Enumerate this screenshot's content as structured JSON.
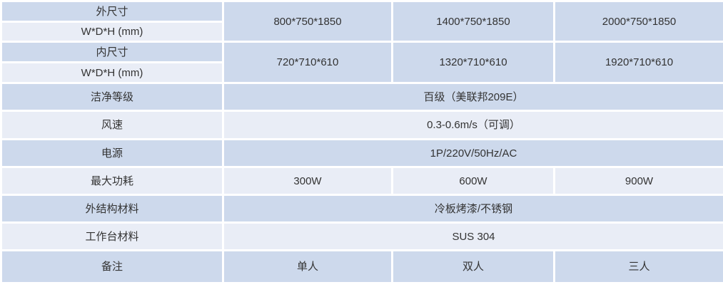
{
  "colors": {
    "row_dark": "#cdd9ec",
    "row_light": "#e9edf6",
    "divider": "#ffffff",
    "text": "#333333"
  },
  "spec_table": {
    "dim_outer": {
      "label_line1": "外尺寸",
      "label_line2": "W*D*H (mm)",
      "values": [
        "800*750*1850",
        "1400*750*1850",
        "2000*750*1850"
      ]
    },
    "dim_inner": {
      "label_line1": "内尺寸",
      "label_line2": "W*D*H (mm)",
      "values": [
        "720*710*610",
        "1320*710*610",
        "1920*710*610"
      ]
    },
    "clean_class": {
      "label": "洁净等级",
      "value": "百级（美联邦209E）"
    },
    "air_speed": {
      "label": "风速",
      "value": "0.3-0.6m/s（可调）"
    },
    "power_supply": {
      "label": "电源",
      "value": "1P/220V/50Hz/AC"
    },
    "max_power": {
      "label": "最大功耗",
      "values": [
        "300W",
        "600W",
        "900W"
      ]
    },
    "outer_material": {
      "label": "外结构材料",
      "value": "冷板烤漆/不锈钢"
    },
    "worktop_material": {
      "label": "工作台材料",
      "value": "SUS 304"
    },
    "remark": {
      "label": "备注",
      "values": [
        "单人",
        "双人",
        "三人"
      ]
    }
  }
}
